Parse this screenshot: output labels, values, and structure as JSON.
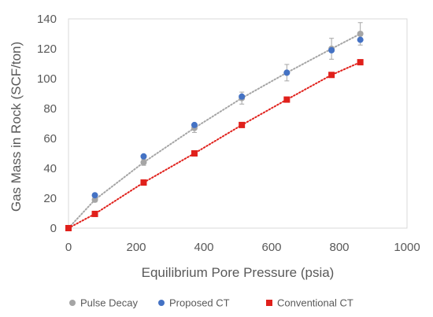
{
  "chart_data": {
    "type": "scatter",
    "title": "",
    "xlabel": "Equilibrium Pore Pressure (psia)",
    "ylabel": "Gas Mass in Rock (SCF/ton)",
    "xlim": [
      0,
      1000
    ],
    "ylim": [
      0,
      140
    ],
    "x_ticks": [
      "0",
      "200",
      "400",
      "600",
      "800",
      "1000"
    ],
    "y_ticks": [
      "0",
      "20",
      "40",
      "60",
      "80",
      "100",
      "120",
      "140"
    ],
    "grid": "none",
    "legend_position": "bottom",
    "series": [
      {
        "name": "Pulse Decay",
        "color": "#a5a5a5",
        "marker": "circle",
        "points": [
          {
            "x": 0,
            "y": 0
          },
          {
            "x": 78,
            "y": 19,
            "err": 1.5
          },
          {
            "x": 222,
            "y": 44,
            "err": 2
          },
          {
            "x": 372,
            "y": 67,
            "err": 3
          },
          {
            "x": 512,
            "y": 87,
            "err": 4
          },
          {
            "x": 645,
            "y": 104,
            "err": 5.5
          },
          {
            "x": 777,
            "y": 120,
            "err": 7
          },
          {
            "x": 862,
            "y": 130,
            "err": 7.5
          }
        ],
        "trendline": "dotted"
      },
      {
        "name": "Proposed CT",
        "color": "#4472c4",
        "marker": "circle",
        "points": [
          {
            "x": 0,
            "y": 0
          },
          {
            "x": 78,
            "y": 22
          },
          {
            "x": 222,
            "y": 48
          },
          {
            "x": 372,
            "y": 69
          },
          {
            "x": 512,
            "y": 88
          },
          {
            "x": 645,
            "y": 104
          },
          {
            "x": 777,
            "y": 119
          },
          {
            "x": 862,
            "y": 126
          }
        ]
      },
      {
        "name": "Conventional CT",
        "color": "#e0201b",
        "marker": "square",
        "points": [
          {
            "x": 0,
            "y": 0
          },
          {
            "x": 78,
            "y": 9.5
          },
          {
            "x": 222,
            "y": 30.5
          },
          {
            "x": 372,
            "y": 50
          },
          {
            "x": 512,
            "y": 69
          },
          {
            "x": 645,
            "y": 86
          },
          {
            "x": 777,
            "y": 102.5
          },
          {
            "x": 862,
            "y": 111
          }
        ],
        "trendline": "dotted"
      }
    ]
  }
}
